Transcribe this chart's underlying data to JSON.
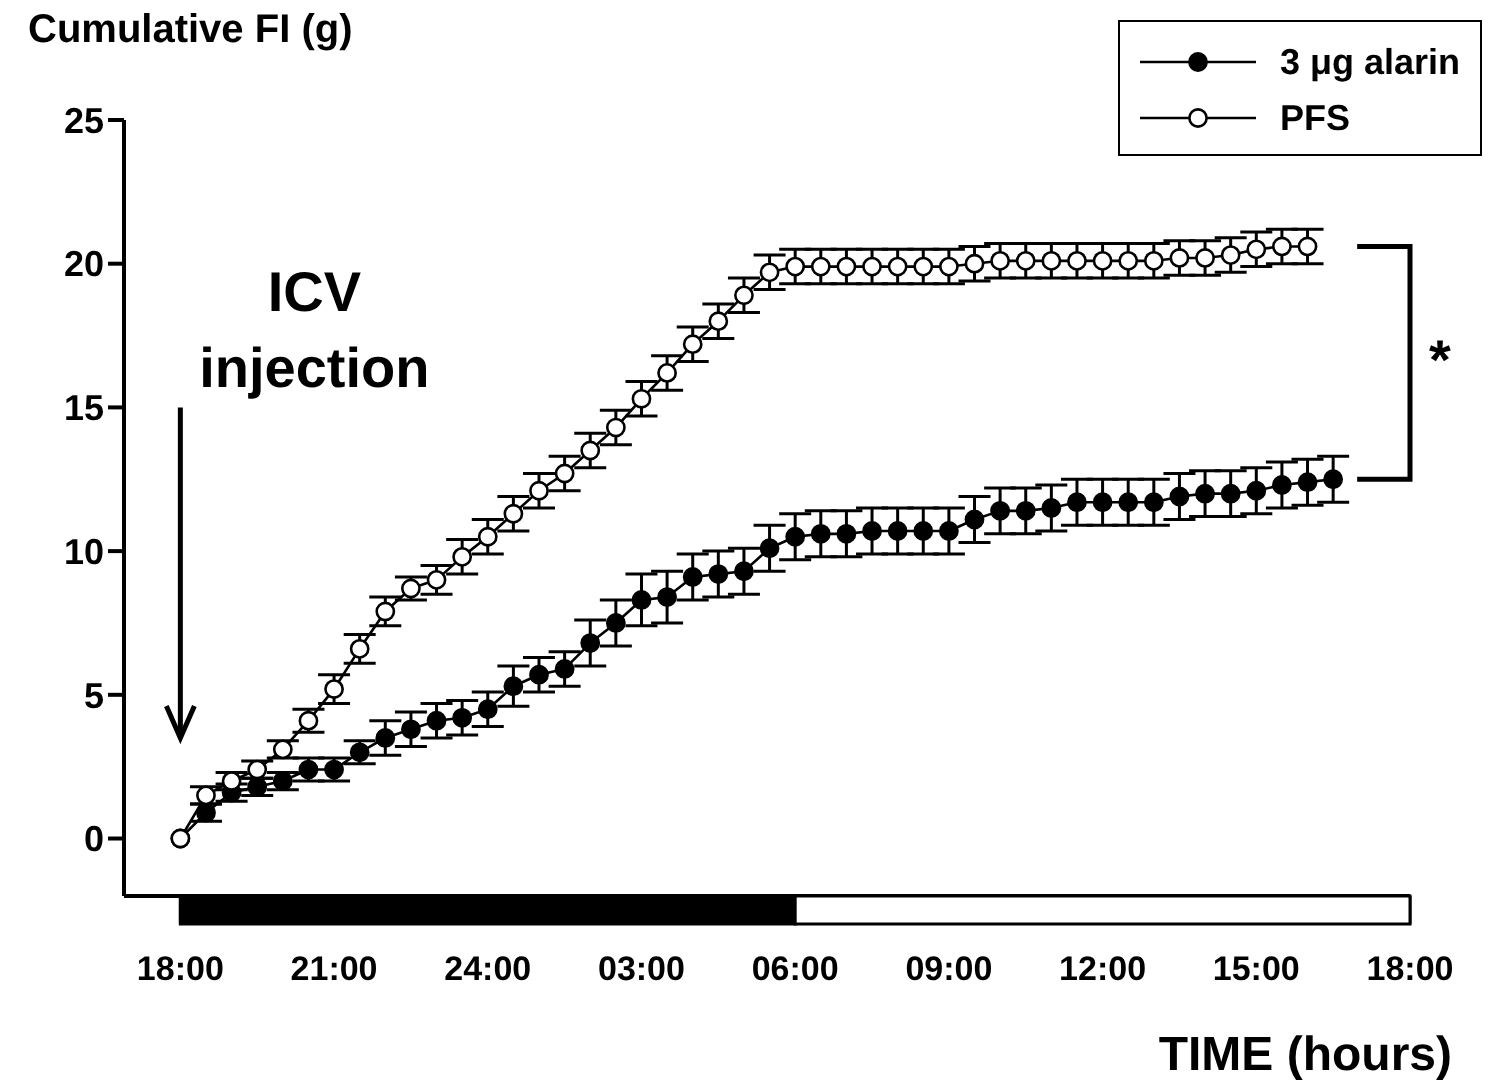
{
  "chart_data": {
    "type": "line",
    "ylabel": "Cumulative FI (g)",
    "xlabel": "TIME (hours)",
    "categories": [
      "18:00",
      null,
      null,
      null,
      null,
      null,
      "21:00",
      null,
      null,
      null,
      null,
      null,
      "24:00",
      null,
      null,
      null,
      null,
      null,
      "03:00",
      null,
      null,
      null,
      null,
      null,
      "06:00",
      null,
      null,
      null,
      null,
      null,
      "09:00",
      null,
      null,
      null,
      null,
      null,
      "12:00",
      null,
      null,
      null,
      null,
      null,
      "15:00",
      null,
      null,
      null,
      null,
      null,
      "18:00"
    ],
    "ylim": [
      -2,
      25
    ],
    "yticks": [
      0,
      5,
      10,
      15,
      20,
      25
    ],
    "marker": "circle",
    "legend": "top right",
    "annotations": [
      "ICV injection",
      "*"
    ],
    "series": [
      {
        "name": "3 μg alarin",
        "color": "#000000",
        "values": [
          0,
          0.9,
          1.6,
          1.8,
          2.0,
          2.4,
          2.4,
          3.0,
          3.5,
          3.8,
          4.1,
          4.2,
          4.5,
          5.3,
          5.7,
          5.9,
          6.8,
          7.5,
          8.3,
          8.4,
          9.1,
          9.2,
          9.3,
          10.1,
          10.5,
          10.6,
          10.6,
          10.7,
          10.7,
          10.7,
          10.7,
          11.1,
          11.4,
          11.4,
          11.5,
          11.7,
          11.7,
          11.7,
          11.7,
          11.9,
          12.0,
          12.0,
          12.1,
          12.3,
          12.4,
          12.5,
          null,
          null,
          null
        ],
        "errors": [
          null,
          0.3,
          0.3,
          0.3,
          0.3,
          0.4,
          0.4,
          0.4,
          0.6,
          0.6,
          0.6,
          0.6,
          0.6,
          0.7,
          0.6,
          0.6,
          0.8,
          0.8,
          0.9,
          0.9,
          0.8,
          0.8,
          0.8,
          0.8,
          0.8,
          0.8,
          0.8,
          0.8,
          0.8,
          0.8,
          0.8,
          0.8,
          0.8,
          0.8,
          0.8,
          0.8,
          0.8,
          0.8,
          0.8,
          0.8,
          0.8,
          0.8,
          0.8,
          0.8,
          0.8,
          0.8,
          null,
          null,
          null
        ]
      },
      {
        "name": "PFS",
        "color": "#ffffff",
        "values": [
          0,
          1.5,
          2.0,
          2.4,
          3.1,
          4.1,
          5.2,
          6.6,
          7.9,
          8.7,
          9.0,
          9.8,
          10.5,
          11.3,
          12.1,
          12.7,
          13.5,
          14.3,
          15.3,
          16.2,
          17.2,
          18.0,
          18.9,
          19.7,
          19.9,
          19.9,
          19.9,
          19.9,
          19.9,
          19.9,
          19.9,
          20.0,
          20.1,
          20.1,
          20.1,
          20.1,
          20.1,
          20.1,
          20.1,
          20.2,
          20.2,
          20.3,
          20.5,
          20.6,
          20.6,
          null,
          null,
          null,
          null
        ],
        "errors": [
          null,
          0.3,
          0.3,
          0.3,
          0.3,
          0.4,
          0.5,
          0.5,
          0.5,
          0.4,
          0.5,
          0.6,
          0.6,
          0.6,
          0.6,
          0.6,
          0.6,
          0.6,
          0.6,
          0.6,
          0.6,
          0.6,
          0.6,
          0.6,
          0.6,
          0.6,
          0.6,
          0.6,
          0.6,
          0.6,
          0.6,
          0.6,
          0.6,
          0.6,
          0.6,
          0.6,
          0.6,
          0.6,
          0.6,
          0.6,
          0.6,
          0.6,
          0.6,
          0.6,
          0.6,
          null,
          null,
          null,
          null
        ]
      }
    ]
  }
}
